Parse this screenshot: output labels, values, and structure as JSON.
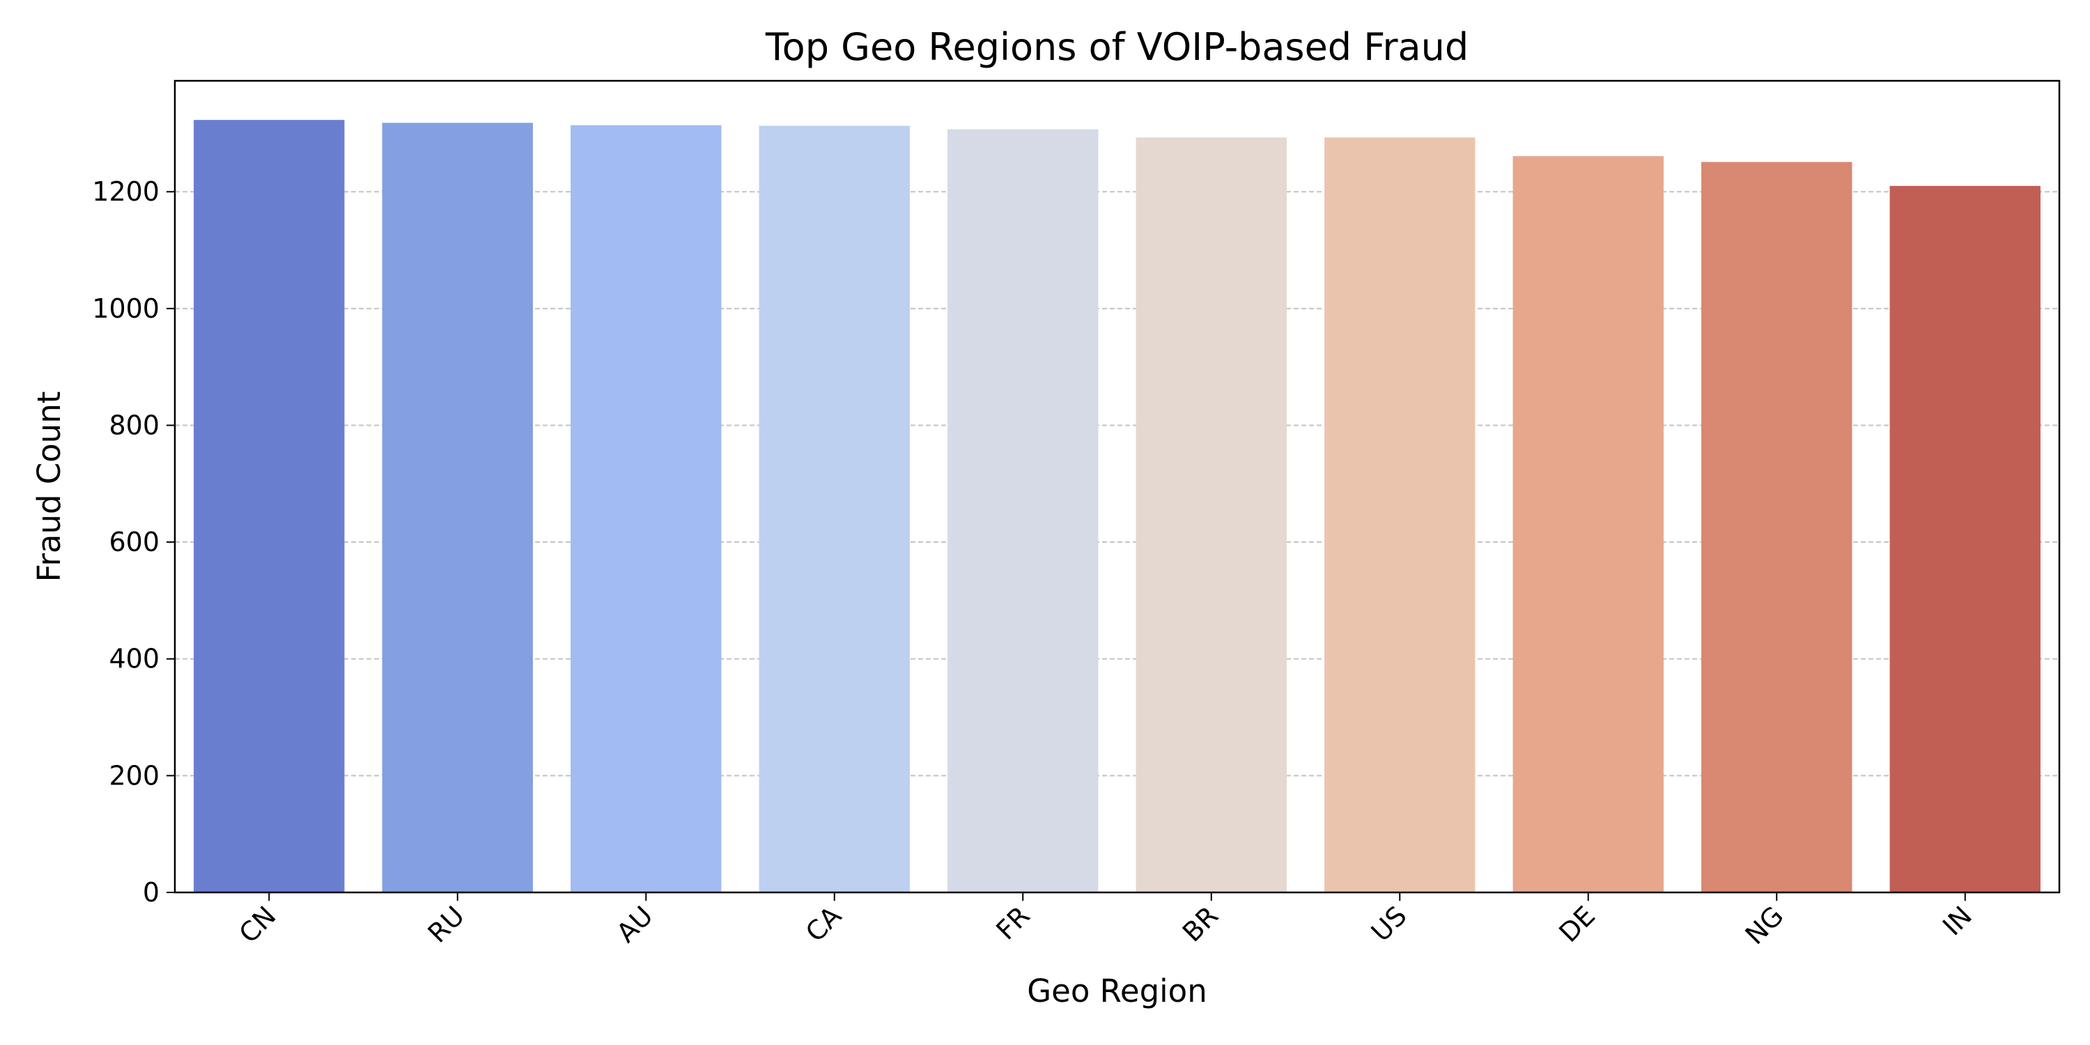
{
  "chart_data": {
    "type": "bar",
    "title": "Top Geo Regions of VOIP-based Fraud",
    "xlabel": "Geo Region",
    "ylabel": "Fraud Count",
    "categories": [
      "CN",
      "RU",
      "AU",
      "CA",
      "FR",
      "BR",
      "US",
      "DE",
      "NG",
      "IN"
    ],
    "values": [
      1323,
      1318,
      1314,
      1313,
      1307,
      1293,
      1293,
      1261,
      1251,
      1210
    ],
    "colors": [
      "#6a7ecf",
      "#849fe2",
      "#a2bbf1",
      "#bdd0f0",
      "#d5dae6",
      "#e5d8d0",
      "#ebc4ae",
      "#e6a78d",
      "#d98871",
      "#c25f54"
    ],
    "ylim": [
      0,
      1390
    ],
    "yticks": [
      0,
      200,
      400,
      600,
      800,
      1000,
      1200
    ],
    "ytick_labels": [
      "0",
      "200",
      "400",
      "600",
      "800",
      "1000",
      "1200"
    ],
    "grid": "y-dashed",
    "legend": "none"
  }
}
